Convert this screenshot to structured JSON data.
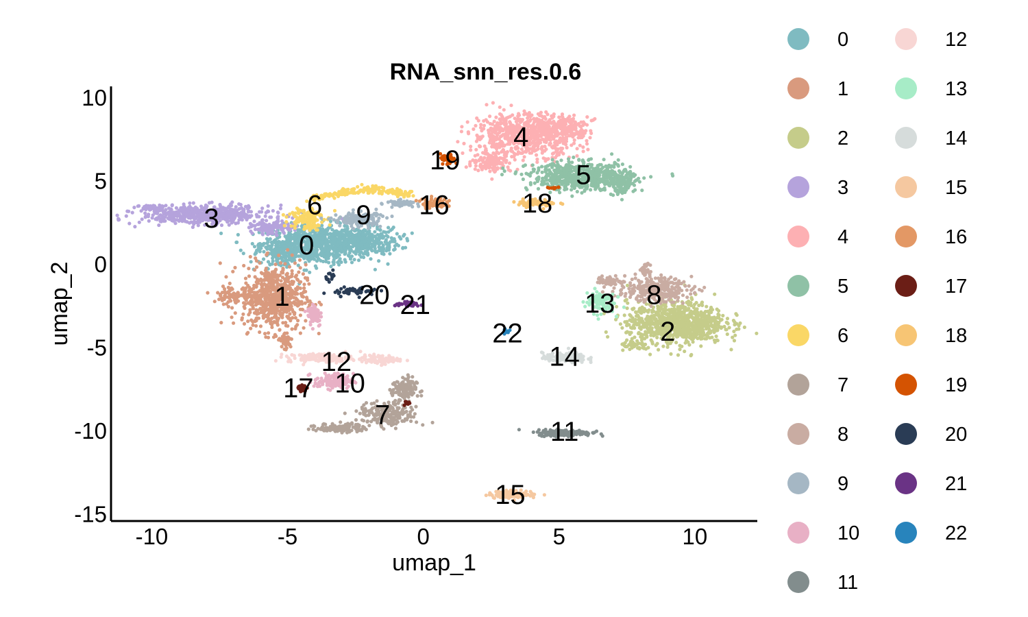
{
  "chart_data": {
    "type": "scatter",
    "title": "RNA_snn_res.0.6",
    "xlabel": "umap_1",
    "ylabel": "umap_2",
    "xlim": [
      -11.5,
      12.3
    ],
    "ylim": [
      -15.4,
      10.7
    ],
    "xticks": [
      -10,
      -5,
      0,
      5,
      10
    ],
    "xtick_labels": [
      "-10",
      "-5",
      "0",
      "5",
      "10"
    ],
    "yticks": [
      10,
      5,
      0,
      -5,
      -10,
      -15
    ],
    "ytick_labels": [
      "10",
      "5",
      "0",
      "-5",
      "-10",
      "-15"
    ],
    "grid": false,
    "legend_placement": "right",
    "legend_columns": 2,
    "clusters": [
      {
        "name": "0",
        "label": "0",
        "color": "#7FBBC1",
        "x": -4.3,
        "y": 1.2,
        "blobs": [
          [
            -4.0,
            1.2,
            2.2,
            1.3,
            700
          ],
          [
            -2.3,
            1.4,
            1.6,
            0.9,
            350
          ],
          [
            -5.2,
            0.8,
            0.9,
            0.8,
            120
          ]
        ]
      },
      {
        "name": "1",
        "label": "1",
        "color": "#D99A7E",
        "x": -5.2,
        "y": -1.9,
        "blobs": [
          [
            -5.5,
            -2.0,
            1.3,
            2.2,
            650
          ],
          [
            -6.9,
            -1.8,
            1.0,
            0.6,
            80
          ],
          [
            -5.1,
            -4.6,
            0.3,
            0.7,
            40
          ]
        ]
      },
      {
        "name": "2",
        "label": "2",
        "color": "#C5CC8A",
        "x": 9.0,
        "y": -4.0,
        "blobs": [
          [
            9.3,
            -3.5,
            2.0,
            1.4,
            900
          ],
          [
            7.8,
            -4.9,
            0.6,
            0.3,
            40
          ]
        ]
      },
      {
        "name": "3",
        "label": "3",
        "color": "#B5A3DC",
        "x": -7.8,
        "y": 2.8,
        "blobs": [
          [
            -8.0,
            3.0,
            2.6,
            0.6,
            550
          ],
          [
            -10.0,
            3.4,
            0.5,
            0.2,
            60
          ],
          [
            -5.6,
            2.2,
            0.8,
            0.4,
            120
          ]
        ]
      },
      {
        "name": "4",
        "label": "4",
        "color": "#FDB0B3",
        "x": 3.6,
        "y": 7.7,
        "blobs": [
          [
            3.8,
            7.8,
            2.2,
            1.4,
            750
          ],
          [
            2.5,
            6.2,
            0.8,
            0.7,
            120
          ],
          [
            5.2,
            8.2,
            1.0,
            0.7,
            150
          ]
        ]
      },
      {
        "name": "5",
        "label": "5",
        "color": "#8FC1A6",
        "x": 5.9,
        "y": 5.4,
        "blobs": [
          [
            5.8,
            5.3,
            2.1,
            0.9,
            650
          ],
          [
            7.3,
            4.8,
            0.5,
            0.7,
            100
          ]
        ]
      },
      {
        "name": "6",
        "label": "6",
        "color": "#FAD766",
        "x": -4.0,
        "y": 3.6,
        "blobs": [
          [
            -4.3,
            2.8,
            0.7,
            0.8,
            130
          ]
        ],
        "arc": [
          [
            -4.2,
            3.9
          ],
          [
            -2.0,
            4.9
          ],
          [
            -0.5,
            4.2
          ],
          200
        ]
      },
      {
        "name": "9",
        "label": "9",
        "color": "#A5B7C4",
        "x": -2.2,
        "y": 3.0,
        "blobs": [
          [
            -2.4,
            2.7,
            1.0,
            0.5,
            150
          ],
          [
            -0.8,
            3.7,
            0.6,
            0.2,
            50
          ]
        ]
      },
      {
        "name": "8",
        "label": "8",
        "color": "#C9ACA2",
        "x": 8.5,
        "y": -1.8,
        "blobs": [
          [
            8.5,
            -1.5,
            1.5,
            0.8,
            280
          ],
          [
            8.2,
            -0.3,
            0.2,
            0.7,
            30
          ],
          [
            6.9,
            -1.0,
            0.6,
            0.3,
            50
          ]
        ]
      },
      {
        "name": "7",
        "label": "7",
        "color": "#B2A399",
        "x": -1.5,
        "y": -9.0,
        "blobs": [
          [
            -3.0,
            -9.8,
            1.0,
            0.3,
            120
          ],
          [
            -1.3,
            -9.0,
            1.2,
            0.8,
            220
          ],
          [
            -0.7,
            -7.5,
            0.5,
            0.8,
            120
          ]
        ]
      },
      {
        "name": "10",
        "label": "10",
        "color": "#E8B0C5",
        "x": -2.7,
        "y": -7.1,
        "blobs": [
          [
            -3.3,
            -7.0,
            0.8,
            0.5,
            130
          ],
          [
            -4.0,
            -3.0,
            0.3,
            0.8,
            70
          ]
        ]
      },
      {
        "name": "11",
        "label": "11",
        "color": "#828D8D",
        "x": 5.2,
        "y": -10.0,
        "blobs": [
          [
            5.2,
            -10.1,
            1.1,
            0.2,
            200
          ]
        ]
      },
      {
        "name": "12",
        "label": "12",
        "color": "#F8D6D4",
        "x": -3.2,
        "y": -5.8,
        "blobs": [
          [
            -3.8,
            -5.6,
            1.3,
            0.3,
            140
          ],
          [
            -1.6,
            -5.7,
            0.8,
            0.3,
            90
          ]
        ]
      },
      {
        "name": "13",
        "label": "13",
        "color": "#A7ECC7",
        "x": 6.5,
        "y": -2.3,
        "blobs": [
          [
            6.5,
            -2.2,
            0.6,
            0.8,
            80
          ]
        ]
      },
      {
        "name": "14",
        "label": "14",
        "color": "#D6DCDB",
        "x": 5.2,
        "y": -5.5,
        "blobs": [
          [
            5.2,
            -5.6,
            0.9,
            0.35,
            130
          ]
        ]
      },
      {
        "name": "15",
        "label": "15",
        "color": "#F5C8A0",
        "x": 3.2,
        "y": -13.8,
        "blobs": [
          [
            3.3,
            -13.8,
            1.0,
            0.25,
            110
          ]
        ]
      },
      {
        "name": "16",
        "label": "16",
        "color": "#E39865",
        "x": 0.4,
        "y": 3.6,
        "blobs": [
          [
            0.4,
            3.7,
            0.5,
            0.35,
            80
          ]
        ]
      },
      {
        "name": "17",
        "label": "17",
        "color": "#6B1E16",
        "x": -4.6,
        "y": -7.4,
        "blobs": [
          [
            -4.5,
            -7.4,
            0.2,
            0.25,
            30
          ],
          [
            -0.6,
            -8.3,
            0.15,
            0.3,
            8
          ]
        ]
      },
      {
        "name": "18",
        "label": "18",
        "color": "#F7C574",
        "x": 4.2,
        "y": 3.7,
        "blobs": [
          [
            4.2,
            3.7,
            0.8,
            0.25,
            70
          ]
        ]
      },
      {
        "name": "19",
        "label": "19",
        "color": "#D45302",
        "x": 0.8,
        "y": 6.3,
        "blobs": [
          [
            0.9,
            6.3,
            0.3,
            0.35,
            40
          ],
          [
            4.8,
            4.6,
            0.3,
            0.1,
            10
          ]
        ]
      },
      {
        "name": "20",
        "label": "20",
        "color": "#2A3C55",
        "x": -1.8,
        "y": -1.8,
        "blobs": [
          [
            -2.5,
            -1.6,
            0.9,
            0.3,
            50
          ],
          [
            -3.4,
            -0.7,
            0.2,
            0.3,
            15
          ]
        ]
      },
      {
        "name": "21",
        "label": "21",
        "color": "#6A3385",
        "x": -0.3,
        "y": -2.4,
        "blobs": [
          [
            -0.5,
            -2.4,
            0.6,
            0.15,
            40
          ]
        ]
      },
      {
        "name": "22",
        "label": "22",
        "color": "#2884BC",
        "x": 3.1,
        "y": -4.1,
        "blobs": [
          [
            3.1,
            -4.0,
            0.15,
            0.2,
            8
          ]
        ]
      }
    ],
    "legend_col1": [
      "0",
      "1",
      "2",
      "3",
      "4",
      "5",
      "6",
      "7",
      "8",
      "9",
      "10",
      "11"
    ],
    "legend_col2": [
      "12",
      "13",
      "14",
      "15",
      "16",
      "17",
      "18",
      "19",
      "20",
      "21",
      "22"
    ]
  }
}
